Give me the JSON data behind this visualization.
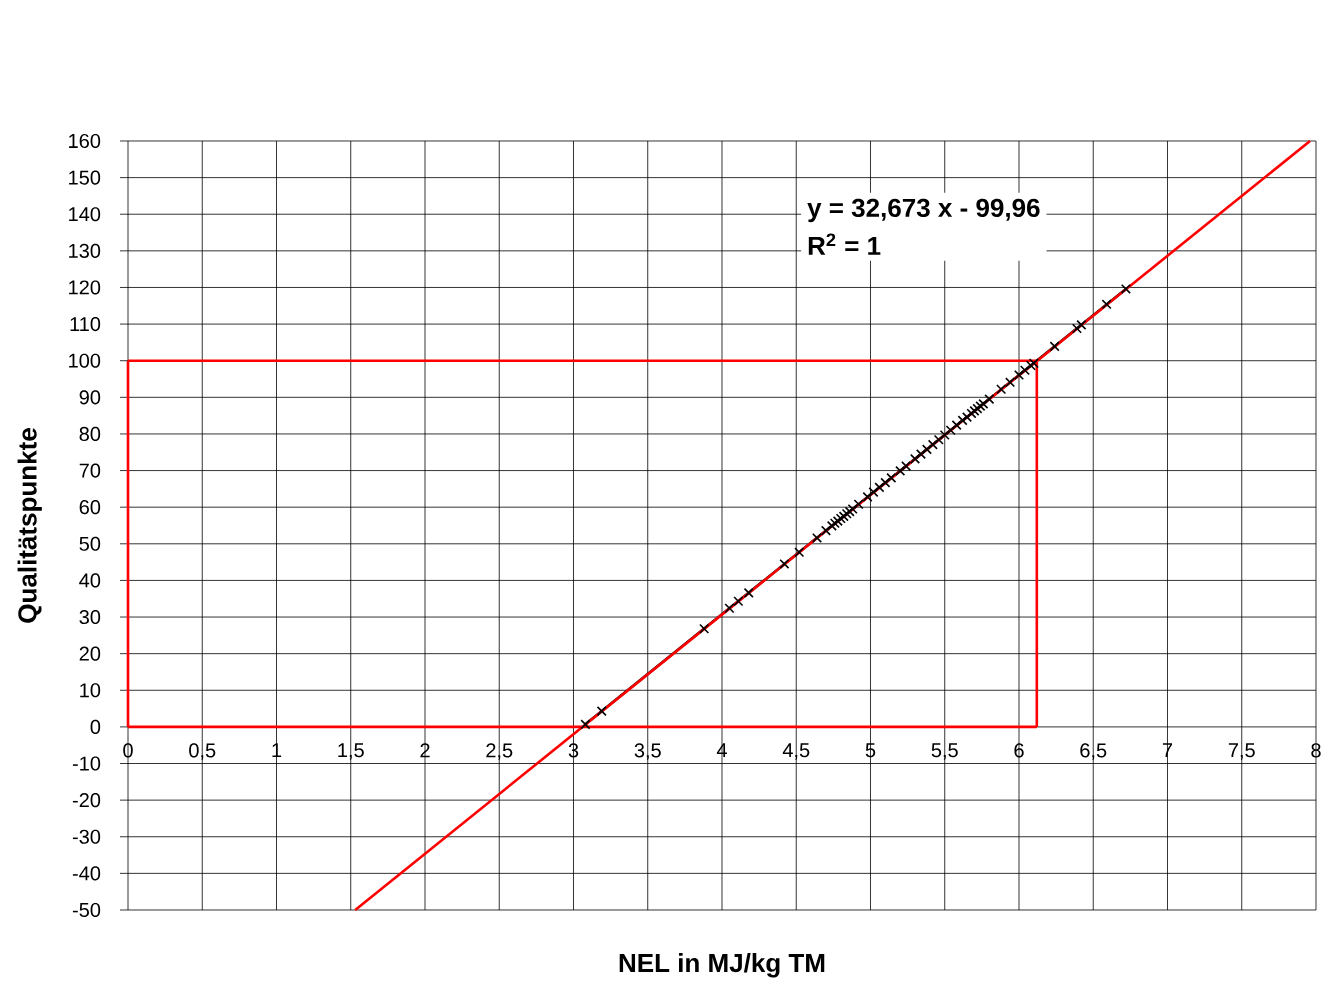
{
  "chart_data": {
    "type": "scatter",
    "xlabel": "NEL in MJ/kg TM",
    "ylabel": "Qualitätspunkte",
    "xlim": [
      0,
      8
    ],
    "ylim": [
      -50,
      160
    ],
    "xticks": [
      0,
      {
        "value": 0.5,
        "label": "0,5"
      },
      1,
      {
        "value": 1.5,
        "label": "1,5"
      },
      2,
      {
        "value": 2.5,
        "label": "2,5"
      },
      3,
      {
        "value": 3.5,
        "label": "3,5"
      },
      4,
      {
        "value": 4.5,
        "label": "4,5"
      },
      5,
      {
        "value": 5.5,
        "label": "5,5"
      },
      6,
      {
        "value": 6.5,
        "label": "6,5"
      },
      7,
      {
        "value": 7.5,
        "label": "7,5"
      },
      8
    ],
    "yticks": [
      -50,
      -40,
      -30,
      -20,
      -10,
      0,
      10,
      20,
      30,
      40,
      50,
      60,
      70,
      80,
      90,
      100,
      110,
      120,
      130,
      140,
      150,
      160
    ],
    "grid": true,
    "annotations": [
      "y = 32,673 x - 99,96",
      "R$^{2}$ = 1"
    ],
    "series": [
      {
        "color": "#000000",
        "marker": "cross",
        "x": [
          3.08,
          3.19,
          3.88,
          4.05,
          4.11,
          4.18,
          4.42,
          4.52,
          4.64,
          4.7,
          4.74,
          4.76,
          4.78,
          4.8,
          4.82,
          4.84,
          4.86,
          4.88,
          4.92,
          4.98,
          5.02,
          5.06,
          5.1,
          5.14,
          5.2,
          5.24,
          5.3,
          5.34,
          5.38,
          5.42,
          5.46,
          5.5,
          5.54,
          5.58,
          5.62,
          5.65,
          5.68,
          5.7,
          5.72,
          5.74,
          5.76,
          5.8,
          5.88,
          5.94,
          6.0,
          6.04,
          6.08,
          6.1,
          6.24,
          6.39,
          6.42,
          6.59,
          6.72
        ],
        "values": [
          0.7,
          4.3,
          26.8,
          32.4,
          34.3,
          36.6,
          44.5,
          47.7,
          51.6,
          53.6,
          54.9,
          55.6,
          56.2,
          56.9,
          57.5,
          58.2,
          58.8,
          59.5,
          60.8,
          62.8,
          64.1,
          65.4,
          66.7,
          68.0,
          69.9,
          71.2,
          73.2,
          74.5,
          75.8,
          77.1,
          78.4,
          79.7,
          81.0,
          82.4,
          83.7,
          84.6,
          85.6,
          86.3,
          86.9,
          87.6,
          88.2,
          89.5,
          92.2,
          94.1,
          96.1,
          97.4,
          98.7,
          99.3,
          103.9,
          108.8,
          109.8,
          115.4,
          119.6
        ]
      },
      {
        "type": "line",
        "color": "#000000",
        "marker": "none",
        "x": [
          3.08,
          6.72
        ],
        "values": [
          0.7,
          119.6
        ]
      },
      {
        "type": "line",
        "color": "#ff0000",
        "marker": "none",
        "x": [
          1.53,
          7.96
        ],
        "values": [
          -50,
          160
        ]
      },
      {
        "type": "line",
        "color": "#ff0000",
        "marker": "none",
        "x": [
          0,
          6.12
        ],
        "values": [
          100,
          100
        ]
      },
      {
        "type": "line",
        "color": "#ff0000",
        "marker": "none",
        "x": [
          0,
          6.12
        ],
        "values": [
          0,
          0
        ]
      },
      {
        "type": "line",
        "color": "#ff0000",
        "marker": "none",
        "x": [
          6.12,
          6.12
        ],
        "values": [
          0,
          100
        ]
      },
      {
        "type": "line",
        "color": "#ff0000",
        "marker": "none",
        "x": [
          0,
          0
        ],
        "values": [
          0,
          100
        ]
      }
    ]
  }
}
